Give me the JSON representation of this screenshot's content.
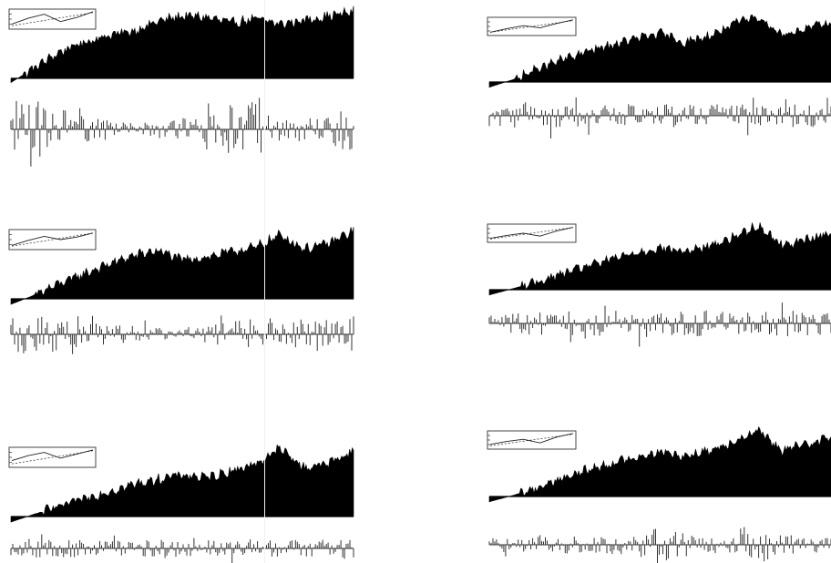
{
  "colors": {
    "background": "#ffffff",
    "fill": "#000000",
    "stem": "#333333",
    "inset_border": "#444444",
    "inset_line": "#222222"
  },
  "chart_data": [
    {
      "type": "area",
      "id": "panel-left-1",
      "title": "",
      "xlabel": "",
      "ylabel": "",
      "upper_series": {
        "name": "",
        "style": "filled-area",
        "values": [
          -0.06,
          0.16,
          0.38,
          0.52,
          0.62,
          0.68,
          0.82,
          0.9,
          0.88,
          0.8,
          0.86,
          0.78,
          0.84,
          0.9,
          0.96
        ]
      },
      "lower_series": {
        "name": "",
        "style": "stems",
        "amplitude_profile": [
          0.95,
          0.9,
          0.45,
          0.3,
          0.25,
          0.35,
          0.8,
          0.9,
          0.4,
          0.35,
          0.8
        ]
      },
      "inset": {
        "line": [
          0.2,
          0.55,
          0.8,
          0.35,
          0.6,
          0.95
        ],
        "dashed_line": [
          0.1,
          0.3,
          0.5,
          0.7,
          0.9
        ]
      }
    },
    {
      "type": "area",
      "id": "panel-left-2",
      "title": "",
      "xlabel": "",
      "ylabel": "",
      "upper_series": {
        "name": "",
        "style": "filled-area",
        "values": [
          -0.08,
          0.06,
          0.22,
          0.36,
          0.5,
          0.62,
          0.7,
          0.56,
          0.6,
          0.68,
          0.74,
          0.92,
          0.72,
          0.8,
          0.98
        ]
      },
      "lower_series": {
        "name": "",
        "style": "stems",
        "amplitude_profile": [
          0.8,
          0.85,
          0.55,
          0.4,
          0.35,
          0.3,
          0.45,
          0.75,
          0.7,
          0.6,
          0.8
        ]
      },
      "inset": {
        "line": [
          0.15,
          0.45,
          0.7,
          0.5,
          0.65,
          0.9
        ],
        "dashed_line": [
          0.1,
          0.3,
          0.5,
          0.7,
          0.9
        ]
      }
    },
    {
      "type": "area",
      "id": "panel-left-3",
      "title": "",
      "xlabel": "",
      "ylabel": "",
      "upper_series": {
        "name": "",
        "style": "filled-area",
        "values": [
          -0.08,
          0.04,
          0.14,
          0.26,
          0.36,
          0.46,
          0.54,
          0.6,
          0.56,
          0.66,
          0.76,
          0.98,
          0.7,
          0.78,
          0.94
        ]
      },
      "lower_series": {
        "name": "",
        "style": "stems",
        "amplitude_profile": [
          0.55,
          0.6,
          0.55,
          0.5,
          0.5,
          0.55,
          0.5,
          0.55,
          0.5,
          0.55,
          0.6
        ]
      },
      "inset": {
        "line": [
          0.3,
          0.6,
          0.8,
          0.45,
          0.7,
          0.95
        ],
        "dashed_line": [
          0.1,
          0.3,
          0.5,
          0.7,
          0.9
        ]
      }
    },
    {
      "type": "area",
      "id": "panel-right-1",
      "title": "",
      "xlabel": "",
      "ylabel": "",
      "upper_series": {
        "name": "",
        "style": "filled-area",
        "values": [
          -0.08,
          0.04,
          0.2,
          0.34,
          0.46,
          0.56,
          0.66,
          0.74,
          0.6,
          0.7,
          0.88,
          1.0,
          0.72,
          0.82,
          0.9
        ]
      },
      "lower_series": {
        "name": "",
        "style": "stems",
        "amplitude_profile": [
          0.55,
          0.6,
          0.6,
          0.55,
          0.65,
          0.6,
          0.55,
          0.6,
          0.55,
          0.6,
          0.55
        ]
      },
      "inset": {
        "line": [
          0.1,
          0.35,
          0.55,
          0.4,
          0.7,
          0.95
        ],
        "dashed_line": [
          0.1,
          0.3,
          0.5,
          0.7,
          0.9
        ]
      }
    },
    {
      "type": "area",
      "id": "panel-right-2",
      "title": "",
      "xlabel": "",
      "ylabel": "",
      "upper_series": {
        "name": "",
        "style": "filled-area",
        "values": [
          -0.08,
          0.02,
          0.12,
          0.24,
          0.36,
          0.46,
          0.56,
          0.64,
          0.58,
          0.66,
          0.8,
          0.98,
          0.68,
          0.76,
          0.88
        ]
      },
      "lower_series": {
        "name": "",
        "style": "stems",
        "amplitude_profile": [
          0.55,
          0.55,
          0.6,
          0.55,
          0.6,
          0.55,
          0.6,
          0.6,
          0.55,
          0.6,
          0.55
        ]
      },
      "inset": {
        "line": [
          0.15,
          0.35,
          0.5,
          0.3,
          0.65,
          0.9
        ],
        "dashed_line": [
          0.1,
          0.3,
          0.5,
          0.7,
          0.9
        ]
      }
    },
    {
      "type": "area",
      "id": "panel-right-3",
      "title": "",
      "xlabel": "",
      "ylabel": "",
      "upper_series": {
        "name": "",
        "style": "filled-area",
        "values": [
          -0.08,
          0.02,
          0.14,
          0.28,
          0.4,
          0.5,
          0.6,
          0.68,
          0.62,
          0.7,
          0.84,
          1.0,
          0.7,
          0.8,
          0.92
        ]
      },
      "lower_series": {
        "name": "",
        "style": "stems",
        "amplitude_profile": [
          0.35,
          0.4,
          0.45,
          0.4,
          0.5,
          0.9,
          0.45,
          0.4,
          0.85,
          0.4,
          0.4
        ]
      },
      "inset": {
        "line": [
          0.2,
          0.4,
          0.55,
          0.3,
          0.7,
          0.95
        ],
        "dashed_line": [
          0.1,
          0.3,
          0.5,
          0.7,
          0.9
        ]
      }
    }
  ]
}
